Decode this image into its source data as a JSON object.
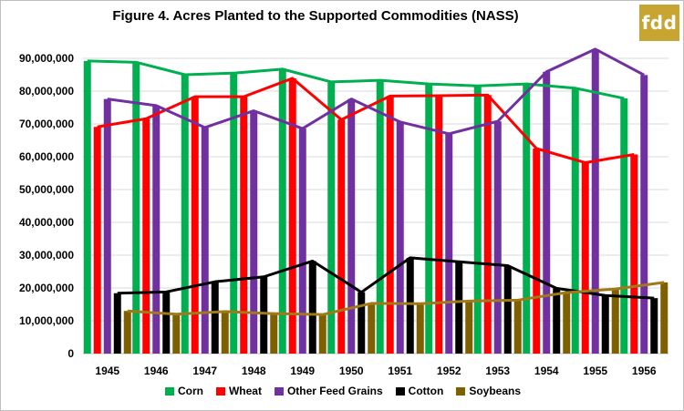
{
  "logo_text": "fdd",
  "chart_data": {
    "type": "bar+line",
    "title": "Figure 4. Acres Planted to the Supported Commodities (NASS)",
    "categories": [
      "1945",
      "1946",
      "1947",
      "1948",
      "1949",
      "1950",
      "1951",
      "1952",
      "1953",
      "1954",
      "1955",
      "1956"
    ],
    "ylim": [
      0,
      90000000
    ],
    "yticks": [
      "0",
      "10,000,000",
      "20,000,000",
      "30,000,000",
      "40,000,000",
      "50,000,000",
      "60,000,000",
      "70,000,000",
      "80,000,000",
      "90,000,000"
    ],
    "grid": true,
    "legend_position": "bottom",
    "series": [
      {
        "name": "Corn",
        "color": "#00b050",
        "values": [
          89200000,
          88800000,
          85000000,
          85500000,
          86700000,
          82800000,
          83300000,
          82200000,
          81600000,
          82200000,
          80900000,
          77800000
        ]
      },
      {
        "name": "Wheat",
        "color": "#ff0000",
        "values": [
          69100000,
          71600000,
          78300000,
          78300000,
          83900000,
          71300000,
          78500000,
          78600000,
          78800000,
          62500000,
          58200000,
          60700000
        ]
      },
      {
        "name": "Other Feed Grains",
        "color": "#7030a0",
        "values": [
          77600000,
          75600000,
          68900000,
          74000000,
          68600000,
          77600000,
          70600000,
          67000000,
          70800000,
          85900000,
          92800000,
          84900000
        ]
      },
      {
        "name": "Cotton",
        "color": "#000000",
        "values": [
          18400000,
          18800000,
          21900000,
          23400000,
          28200000,
          18700000,
          29200000,
          28000000,
          26800000,
          19900000,
          17700000,
          16900000
        ]
      },
      {
        "name": "Soybeans",
        "color": "#7f6000",
        "line_color": "#a07a1a",
        "values": [
          13000000,
          12000000,
          12800000,
          12200000,
          11900000,
          15300000,
          15200000,
          16000000,
          16300000,
          18600000,
          19700000,
          21700000
        ]
      }
    ]
  }
}
